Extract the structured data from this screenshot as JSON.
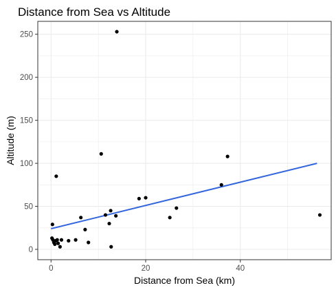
{
  "chart_data": {
    "type": "scatter",
    "title": "Distance from Sea vs Altitude",
    "xlabel": "Distance from Sea (km)",
    "ylabel": "Altitude (m)",
    "xlim": [
      -2.8,
      59.2
    ],
    "ylim": [
      -12,
      265
    ],
    "x_ticks": [
      0,
      20,
      40
    ],
    "y_ticks": [
      0,
      50,
      100,
      150,
      200,
      250
    ],
    "grid": true,
    "legend": "none",
    "points": [
      {
        "x": 0.3,
        "y": 29
      },
      {
        "x": 0.2,
        "y": 13
      },
      {
        "x": 0.4,
        "y": 11
      },
      {
        "x": 0.6,
        "y": 8
      },
      {
        "x": 0.8,
        "y": 6
      },
      {
        "x": 1.0,
        "y": 10
      },
      {
        "x": 1.1,
        "y": 85
      },
      {
        "x": 1.3,
        "y": 11
      },
      {
        "x": 1.5,
        "y": 7
      },
      {
        "x": 1.9,
        "y": 3
      },
      {
        "x": 2.2,
        "y": 11
      },
      {
        "x": 3.7,
        "y": 10
      },
      {
        "x": 5.2,
        "y": 11
      },
      {
        "x": 6.3,
        "y": 37
      },
      {
        "x": 7.2,
        "y": 23
      },
      {
        "x": 7.9,
        "y": 8
      },
      {
        "x": 10.6,
        "y": 111
      },
      {
        "x": 11.5,
        "y": 40
      },
      {
        "x": 12.3,
        "y": 30
      },
      {
        "x": 12.6,
        "y": 45
      },
      {
        "x": 12.7,
        "y": 3
      },
      {
        "x": 13.7,
        "y": 39
      },
      {
        "x": 13.9,
        "y": 253
      },
      {
        "x": 18.6,
        "y": 59
      },
      {
        "x": 20.0,
        "y": 60
      },
      {
        "x": 25.1,
        "y": 37
      },
      {
        "x": 26.5,
        "y": 48
      },
      {
        "x": 36.0,
        "y": 75
      },
      {
        "x": 37.3,
        "y": 108
      },
      {
        "x": 56.8,
        "y": 40
      }
    ],
    "trend_line": {
      "x": [
        0,
        56.2
      ],
      "y": [
        24,
        100
      ]
    },
    "colors": {
      "point": "#000000",
      "trend": "#3366dd",
      "grid": "#ebebeb",
      "border": "#333333"
    }
  }
}
